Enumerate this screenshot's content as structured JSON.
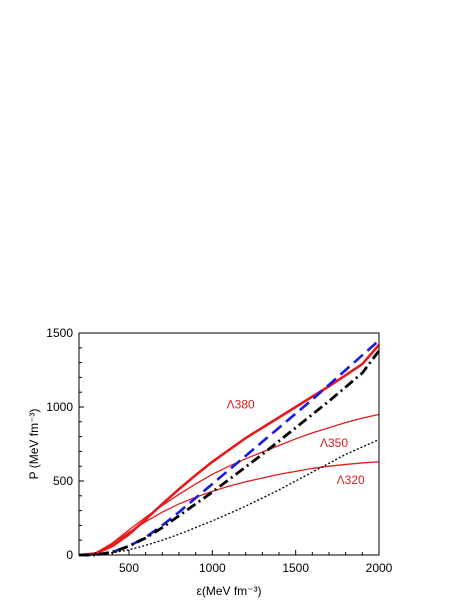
{
  "chart_data": {
    "type": "line",
    "title": "",
    "xlabel": "ε(MeV fm⁻³)",
    "ylabel": "P (MeV fm⁻³)",
    "xlim": [
      200,
      2000
    ],
    "ylim": [
      0,
      1500
    ],
    "xticks": [
      500,
      1000,
      1500,
      2000
    ],
    "yticks": [
      0,
      500,
      1000,
      1500
    ],
    "x_minor_step": 100,
    "y_minor_step": 100,
    "grid": false,
    "legend": "none",
    "series": [
      {
        "name": "Λ380",
        "color": "#e41a1c",
        "style": "solid-thick",
        "points": [
          [
            200,
            0
          ],
          [
            300,
            10
          ],
          [
            400,
            60
          ],
          [
            500,
            140
          ],
          [
            600,
            240
          ],
          [
            700,
            345
          ],
          [
            800,
            445
          ],
          [
            900,
            540
          ],
          [
            1000,
            630
          ],
          [
            1100,
            710
          ],
          [
            1200,
            790
          ],
          [
            1300,
            860
          ],
          [
            1400,
            930
          ],
          [
            1500,
            1000
          ],
          [
            1600,
            1070
          ],
          [
            1700,
            1140
          ],
          [
            1800,
            1215
          ],
          [
            1900,
            1290
          ],
          [
            2000,
            1420
          ]
        ]
      },
      {
        "name": "Λ350",
        "color": "#e41a1c",
        "style": "solid-thin",
        "points": [
          [
            200,
            0
          ],
          [
            300,
            15
          ],
          [
            400,
            80
          ],
          [
            500,
            170
          ],
          [
            600,
            255
          ],
          [
            700,
            335
          ],
          [
            800,
            410
          ],
          [
            900,
            480
          ],
          [
            1000,
            545
          ],
          [
            1100,
            600
          ],
          [
            1200,
            650
          ],
          [
            1300,
            695
          ],
          [
            1400,
            740
          ],
          [
            1500,
            785
          ],
          [
            1600,
            825
          ],
          [
            1700,
            860
          ],
          [
            1800,
            895
          ],
          [
            1900,
            925
          ],
          [
            2000,
            950
          ]
        ]
      },
      {
        "name": "Λ320",
        "color": "#e41a1c",
        "style": "solid-thin",
        "points": [
          [
            200,
            0
          ],
          [
            300,
            15
          ],
          [
            400,
            75
          ],
          [
            500,
            155
          ],
          [
            600,
            225
          ],
          [
            700,
            290
          ],
          [
            800,
            345
          ],
          [
            900,
            390
          ],
          [
            1000,
            430
          ],
          [
            1100,
            465
          ],
          [
            1200,
            495
          ],
          [
            1300,
            520
          ],
          [
            1400,
            545
          ],
          [
            1500,
            565
          ],
          [
            1600,
            585
          ],
          [
            1700,
            600
          ],
          [
            1800,
            612
          ],
          [
            1900,
            622
          ],
          [
            2000,
            630
          ]
        ]
      },
      {
        "name": "",
        "color": "#1a1ae6",
        "style": "dashed",
        "points": [
          [
            200,
            0
          ],
          [
            300,
            0
          ],
          [
            400,
            20
          ],
          [
            500,
            60
          ],
          [
            600,
            120
          ],
          [
            700,
            200
          ],
          [
            800,
            290
          ],
          [
            900,
            385
          ],
          [
            1000,
            480
          ],
          [
            1100,
            575
          ],
          [
            1200,
            670
          ],
          [
            1300,
            765
          ],
          [
            1400,
            860
          ],
          [
            1500,
            955
          ],
          [
            1600,
            1050
          ],
          [
            1700,
            1150
          ],
          [
            1800,
            1250
          ],
          [
            1900,
            1350
          ],
          [
            2000,
            1450
          ]
        ]
      },
      {
        "name": "",
        "color": "#000000",
        "style": "dashdot",
        "points": [
          [
            200,
            0
          ],
          [
            300,
            0
          ],
          [
            400,
            20
          ],
          [
            500,
            60
          ],
          [
            600,
            115
          ],
          [
            700,
            185
          ],
          [
            800,
            265
          ],
          [
            900,
            345
          ],
          [
            1000,
            425
          ],
          [
            1100,
            510
          ],
          [
            1200,
            595
          ],
          [
            1300,
            680
          ],
          [
            1400,
            770
          ],
          [
            1500,
            860
          ],
          [
            1600,
            950
          ],
          [
            1700,
            1040
          ],
          [
            1800,
            1135
          ],
          [
            1900,
            1230
          ],
          [
            2000,
            1380
          ]
        ]
      },
      {
        "name": "",
        "color": "#000000",
        "style": "dotted",
        "points": [
          [
            200,
            0
          ],
          [
            300,
            5
          ],
          [
            400,
            15
          ],
          [
            500,
            35
          ],
          [
            600,
            65
          ],
          [
            700,
            100
          ],
          [
            800,
            140
          ],
          [
            900,
            185
          ],
          [
            1000,
            230
          ],
          [
            1100,
            280
          ],
          [
            1200,
            330
          ],
          [
            1300,
            385
          ],
          [
            1400,
            440
          ],
          [
            1500,
            500
          ],
          [
            1600,
            560
          ],
          [
            1700,
            620
          ],
          [
            1800,
            680
          ],
          [
            1900,
            730
          ],
          [
            2000,
            780
          ]
        ]
      }
    ],
    "annotations": [
      {
        "text": "Λ380",
        "x": 1170,
        "y": 990
      },
      {
        "text": "Λ350",
        "x": 1730,
        "y": 730
      },
      {
        "text": "Λ320",
        "x": 1830,
        "y": 480
      }
    ]
  }
}
